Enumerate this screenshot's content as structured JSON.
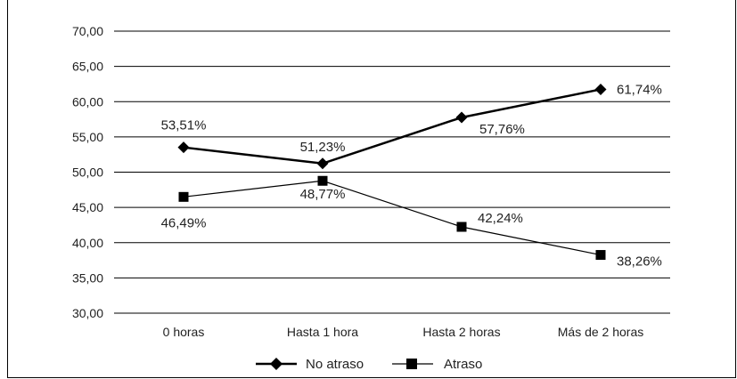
{
  "chart_data": {
    "type": "line",
    "categories": [
      "0 horas",
      "Hasta 1 hora",
      "Hasta 2 horas",
      "Más de 2 horas"
    ],
    "series": [
      {
        "name": "No atraso",
        "values": [
          53.51,
          51.23,
          57.76,
          61.74
        ],
        "labels": [
          "53,51%",
          "51,23%",
          "57,76%",
          "61,74%"
        ],
        "marker": "diamond",
        "color": "#000000"
      },
      {
        "name": "Atraso",
        "values": [
          46.49,
          48.77,
          42.24,
          38.26
        ],
        "labels": [
          "46,49%",
          "48,77%",
          "42,24%",
          "38,26%"
        ],
        "marker": "square",
        "color": "#000000"
      }
    ],
    "ylim": [
      30,
      70
    ],
    "yticks": [
      "30,00",
      "35,00",
      "40,00",
      "45,00",
      "50,00",
      "55,00",
      "60,00",
      "65,00",
      "70,00"
    ],
    "grid": true,
    "legend": "bottom"
  }
}
